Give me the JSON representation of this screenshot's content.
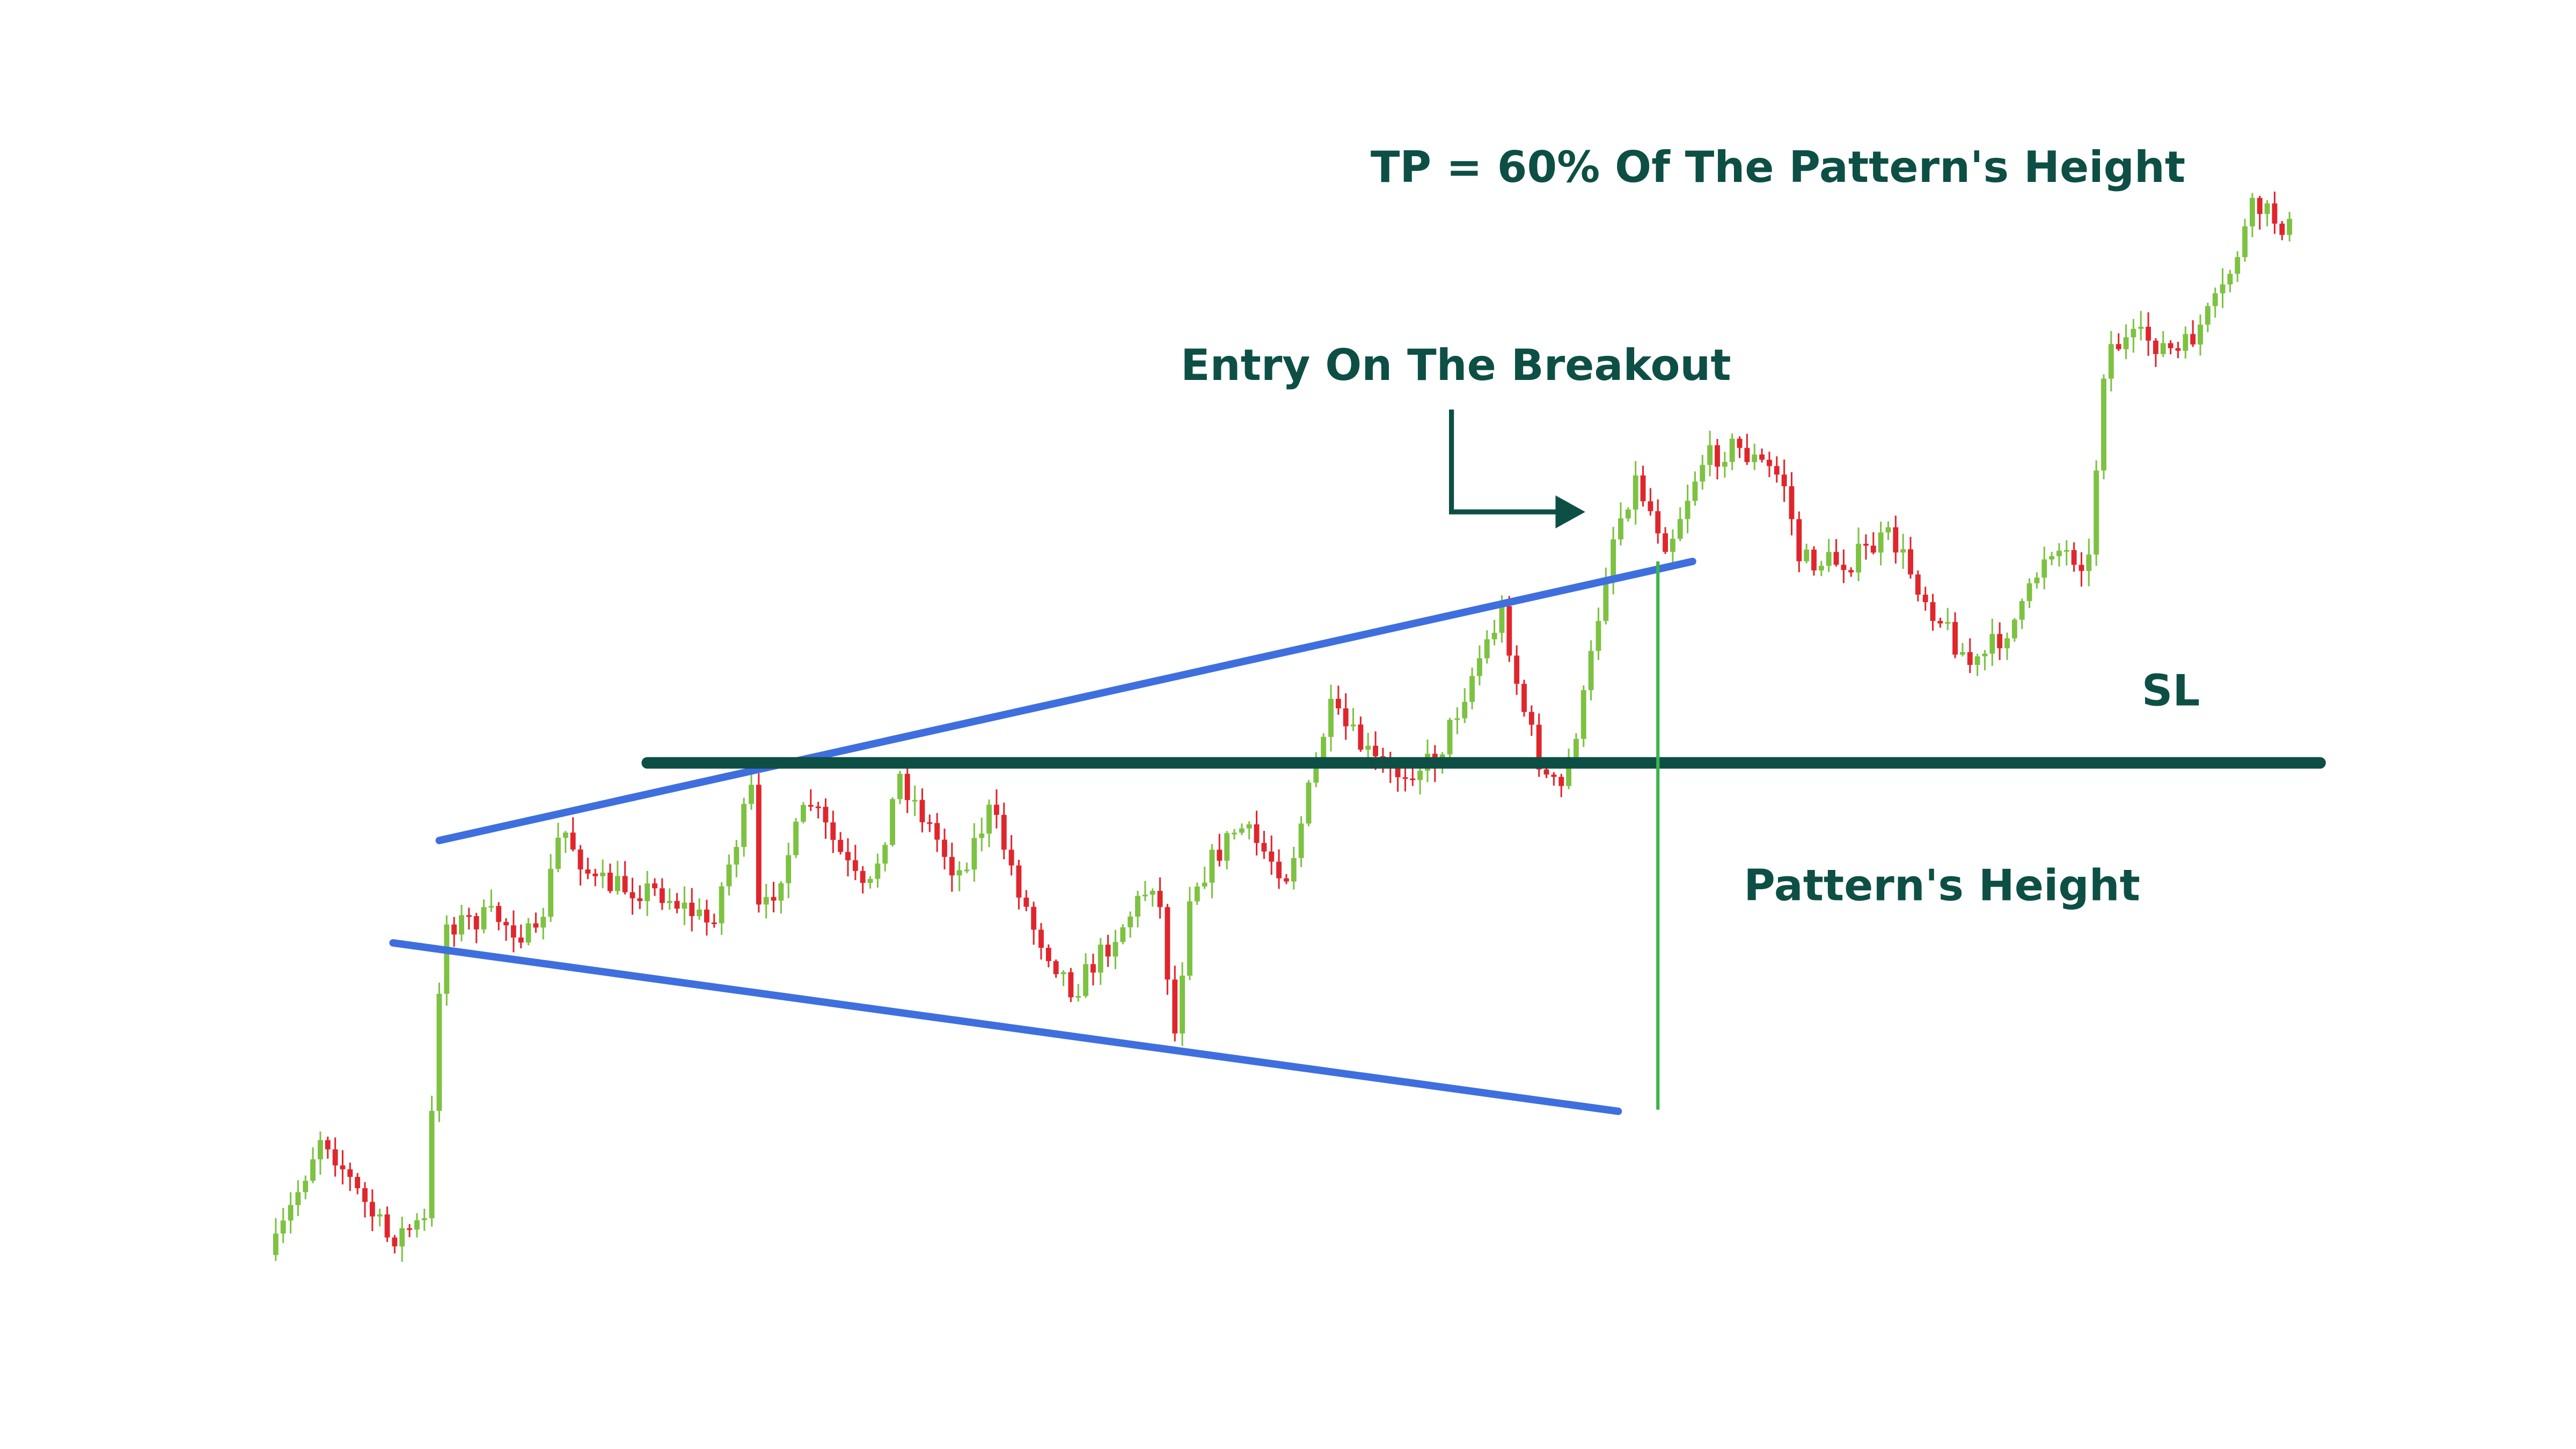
{
  "annotations": {
    "take_profit": "TP = 60% Of The Pattern's Height",
    "entry": "Entry On The Breakout",
    "stop_loss": "SL",
    "pattern_height": "Pattern's Height"
  }
}
